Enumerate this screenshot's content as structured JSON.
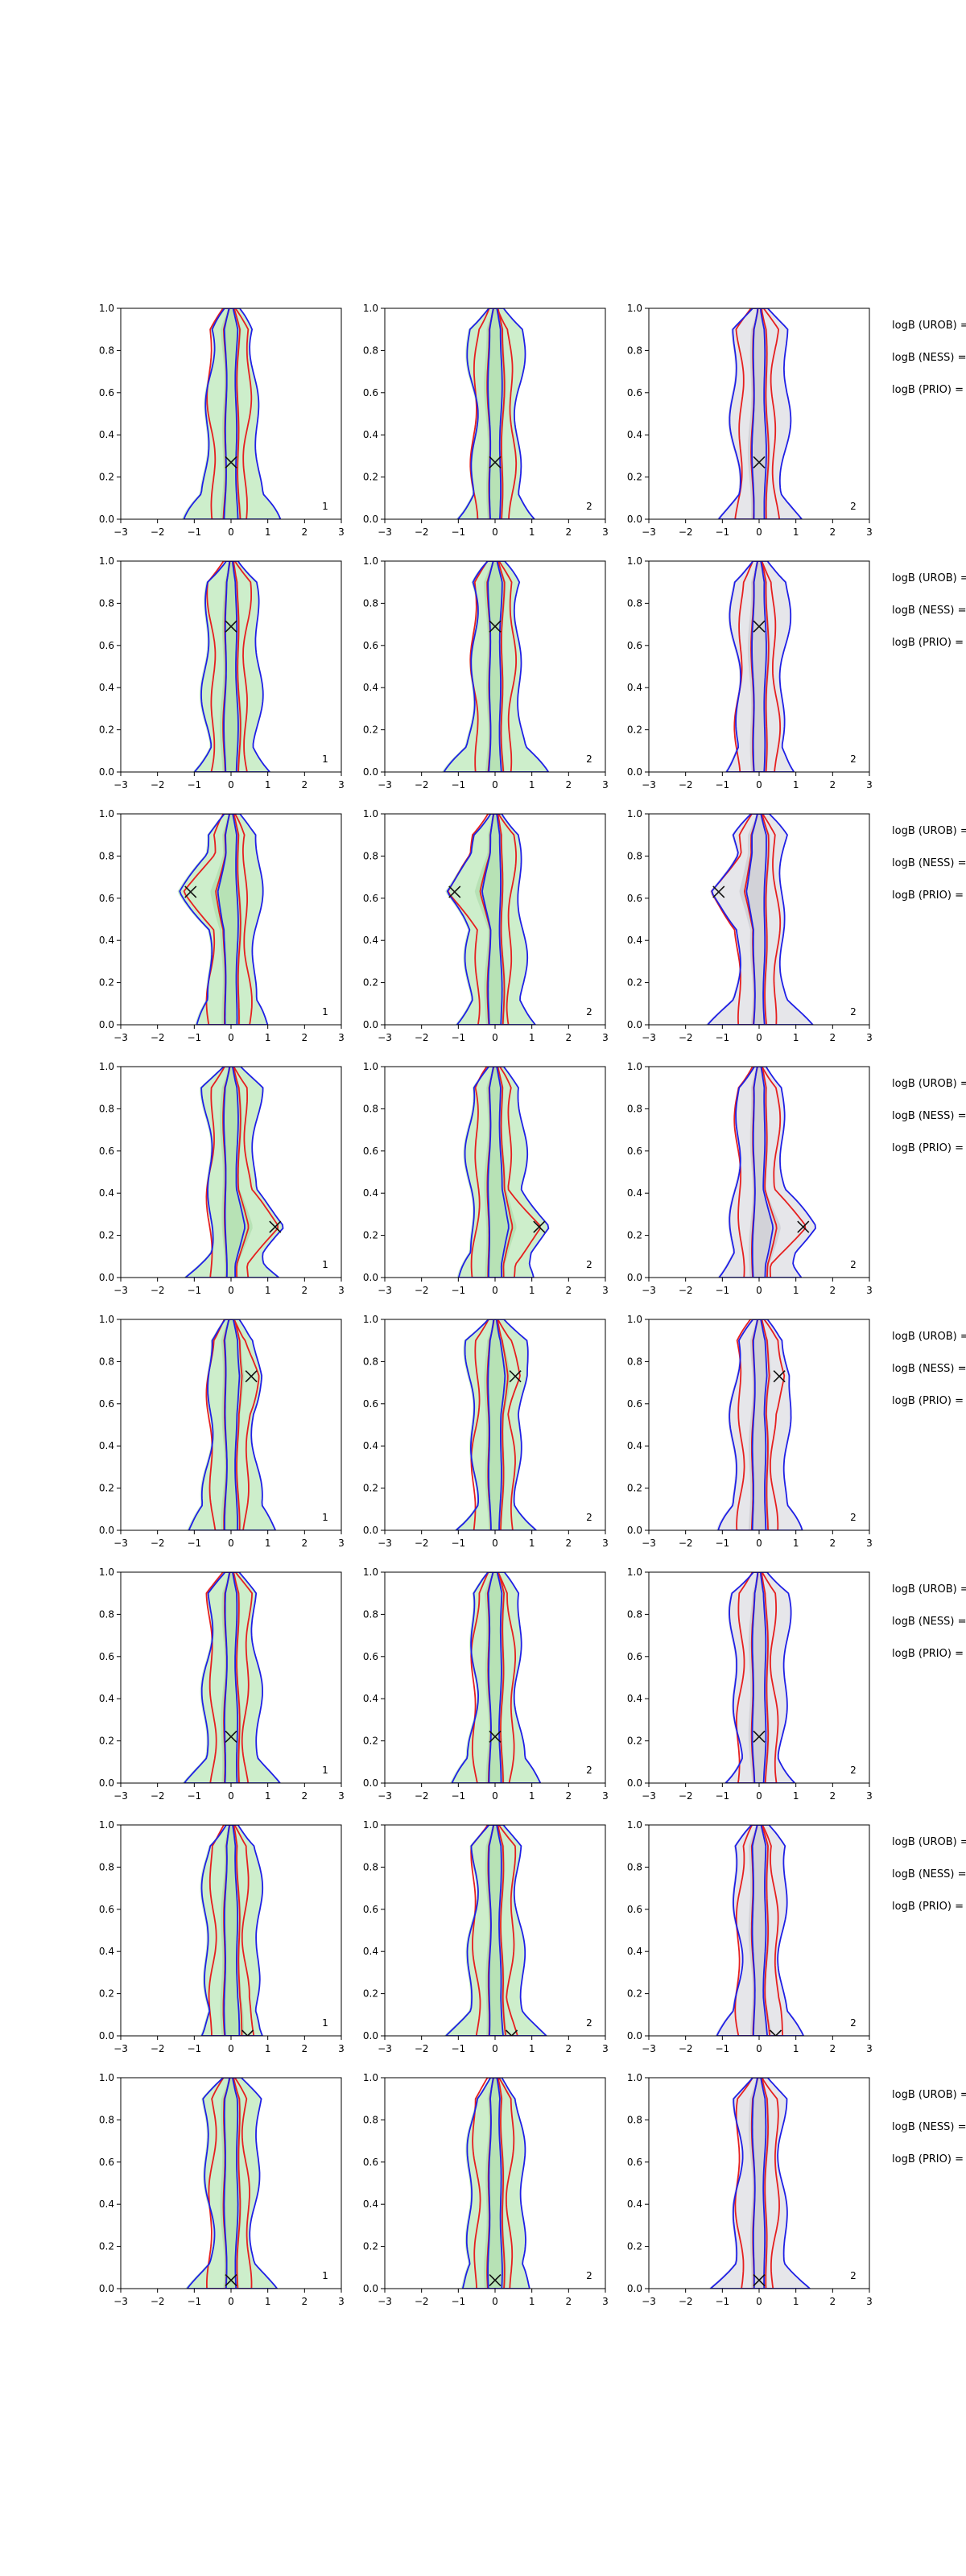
{
  "chart_data": {
    "type": "contour",
    "layout": {
      "rows": 8,
      "cols": 3
    },
    "x_ticks": [
      "−3",
      "−2",
      "−1",
      "0",
      "1",
      "2",
      "3"
    ],
    "y_ticks": [
      "0.0",
      "0.2",
      "0.4",
      "0.6",
      "0.8",
      "1.0"
    ],
    "xlim": [
      -3,
      3
    ],
    "ylim": [
      0,
      1
    ],
    "panel_tags": [
      "1",
      "2",
      "2"
    ],
    "panel_fills": [
      "#cdeecb",
      "#cdeecb",
      "#e6e6ea"
    ],
    "series_colors": {
      "blue": "#1f1fe6",
      "red": "#e61f1f",
      "marker": "#111111"
    },
    "legend_lines": [
      "logB (UROB) =",
      "logB (NESS) =",
      "logB (PRIO) ="
    ],
    "rows": [
      {
        "marker": [
          0.0,
          0.27
        ]
      },
      {
        "marker": [
          0.0,
          0.69
        ]
      },
      {
        "marker": [
          -1.1,
          0.63
        ]
      },
      {
        "marker": [
          1.2,
          0.24
        ]
      },
      {
        "marker": [
          0.55,
          0.73
        ]
      },
      {
        "marker": [
          0.0,
          0.22
        ]
      },
      {
        "marker": [
          0.45,
          0.0
        ]
      },
      {
        "marker": [
          0.0,
          0.04
        ]
      }
    ]
  }
}
